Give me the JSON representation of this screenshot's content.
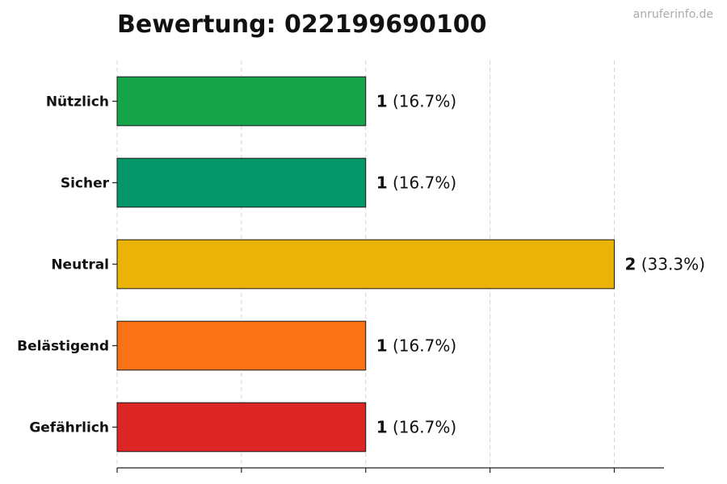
{
  "watermark": "anruferinfo.de",
  "chart_data": {
    "type": "bar",
    "orientation": "horizontal",
    "title": "Bewertung: 022199690100",
    "xlabel": "",
    "ylabel": "",
    "xlim": [
      0,
      2.2
    ],
    "grid": "vertical-dashed",
    "x_ticks": [
      0,
      0.5,
      1,
      1.5,
      2
    ],
    "categories": [
      "Nützlich",
      "Sicher",
      "Neutral",
      "Belästigend",
      "Gefährlich"
    ],
    "values": [
      1,
      1,
      2,
      1,
      1
    ],
    "percent_labels": [
      "(16.7%)",
      "(16.7%)",
      "(33.3%)",
      "(16.7%)",
      "(16.7%)"
    ],
    "colors": [
      "#16a34a",
      "#059669",
      "#eab308",
      "#f97316",
      "#dc2626"
    ]
  }
}
